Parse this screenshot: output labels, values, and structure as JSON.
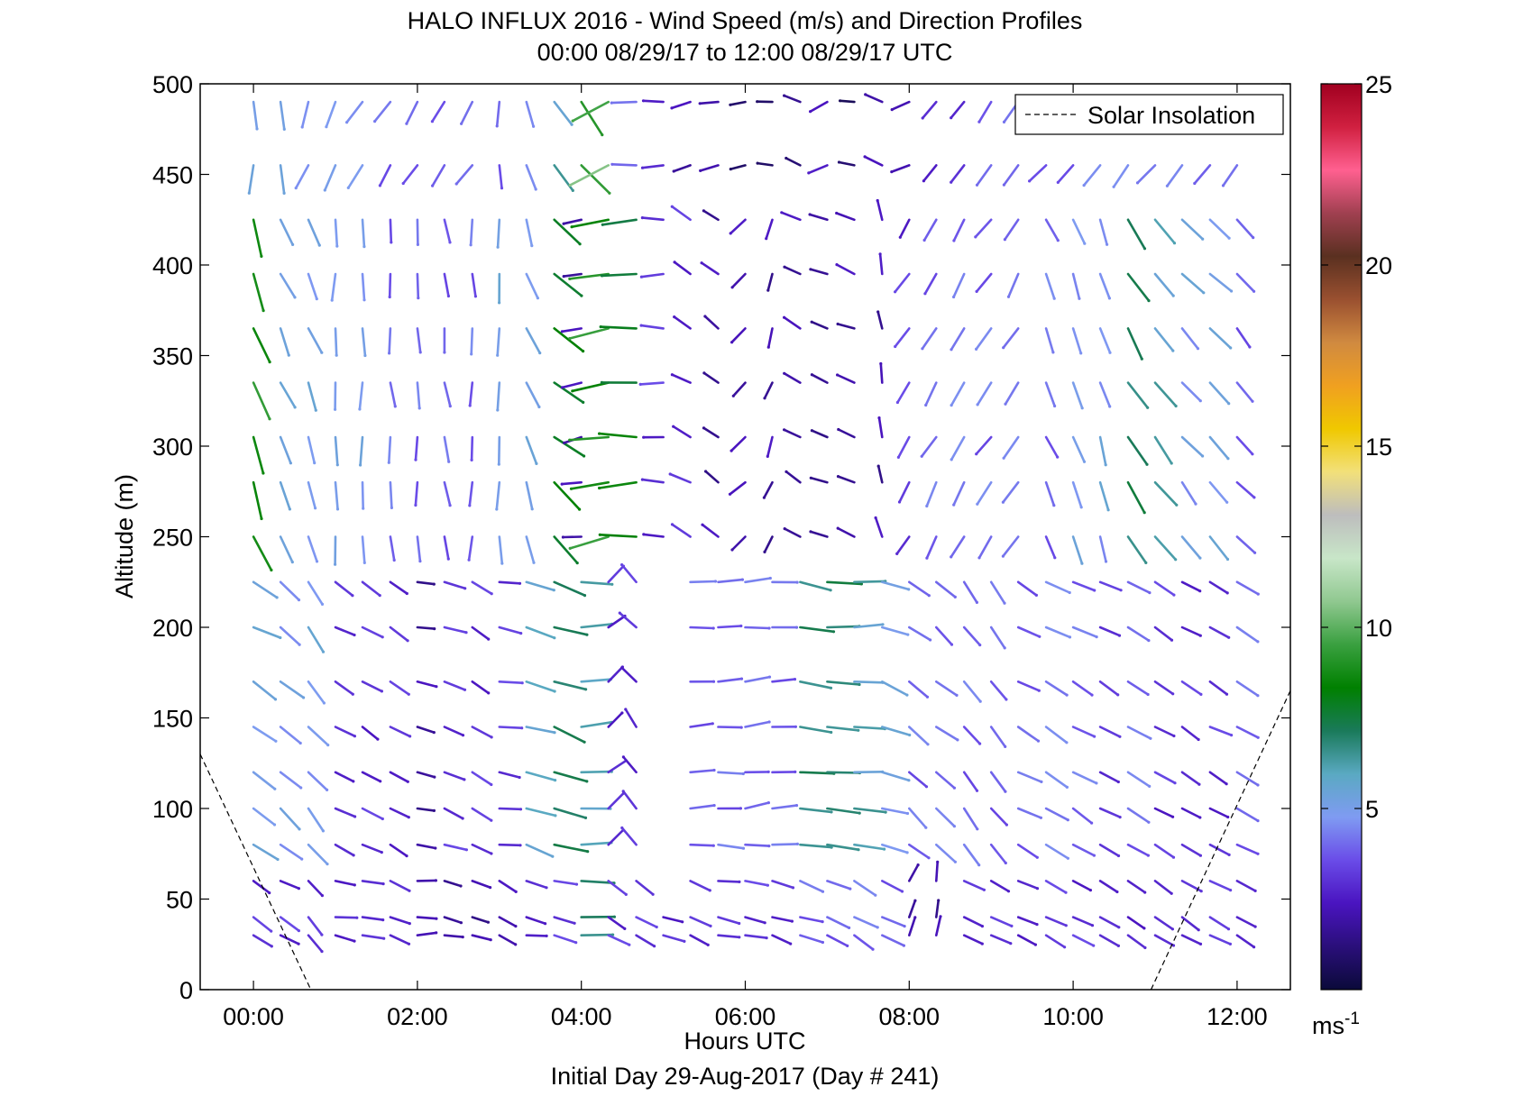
{
  "chart_data": {
    "type": "wind-barb-profile",
    "title": "HALO INFLUX 2016 - Wind Speed (m/s) and Direction Profiles",
    "subtitle": "00:00 08/29/17 to 12:00 08/29/17  UTC",
    "xlabel": "Hours UTC",
    "ylabel": "Altitude (m)",
    "footer": "Initial Day 29-Aug-2017 (Day # 241)",
    "xlim": [
      -0.65,
      12.65
    ],
    "ylim": [
      0,
      500
    ],
    "x_ticks": [
      "00:00",
      "02:00",
      "04:00",
      "06:00",
      "08:00",
      "10:00",
      "12:00"
    ],
    "x_tick_values": [
      0,
      2,
      4,
      6,
      8,
      10,
      12
    ],
    "y_ticks": [
      "0",
      "50",
      "100",
      "150",
      "200",
      "250",
      "300",
      "350",
      "400",
      "450",
      "500"
    ],
    "y_tick_values": [
      0,
      50,
      100,
      150,
      200,
      250,
      300,
      350,
      400,
      450,
      500
    ],
    "legend": {
      "label": "Solar Insolation",
      "style": "dashed",
      "position": "top-right"
    },
    "solar_insolation": [
      {
        "x": [
          -0.65,
          0.7
        ],
        "y": [
          130,
          0
        ]
      },
      {
        "x": [
          10.95,
          12.65
        ],
        "y": [
          0,
          165
        ]
      }
    ],
    "colorbar": {
      "min": 0,
      "max": 25,
      "ticks": [
        "5",
        "10",
        "15",
        "20",
        "25"
      ],
      "tick_values": [
        5,
        10,
        15,
        20,
        25
      ],
      "unit": "ms",
      "unit_exponent": "-1",
      "stops": [
        "#0b0a3a",
        "#2a0f7a",
        "#4a14c0",
        "#6a4ce8",
        "#7f9bf2",
        "#5aa9c2",
        "#1a7a5a",
        "#008000",
        "#3aa040",
        "#90c890",
        "#c8e6c8",
        "#bdbdbd",
        "#f2e07a",
        "#f0c800",
        "#f0a020",
        "#d08a40",
        "#9a5030",
        "#5a3020",
        "#a04050",
        "#ff6090",
        "#d02040",
        "#a00020"
      ]
    },
    "wind_vectors": {
      "times": [
        0.0,
        0.33,
        0.67,
        1.0,
        1.33,
        1.67,
        2.0,
        2.33,
        2.67,
        3.0,
        3.33,
        3.67,
        4.0,
        4.33,
        4.67,
        5.0,
        5.33,
        5.67,
        6.0,
        6.33,
        6.67,
        7.0,
        7.33,
        7.67,
        8.0,
        8.33,
        8.67,
        9.0,
        9.33,
        9.67,
        10.0,
        10.33,
        10.67,
        11.0,
        11.33,
        11.67,
        12.0
      ],
      "altitudes": [
        30,
        40,
        60,
        80,
        100,
        120,
        145,
        170,
        200,
        225,
        250,
        280,
        305,
        335,
        365,
        395,
        425,
        455,
        490
      ],
      "sample_rows": [
        {
          "altitude": 490,
          "speed_ms": [
            5,
            5,
            5,
            5,
            5,
            4,
            4,
            4,
            4,
            4,
            5,
            6,
            9,
            10,
            4,
            3,
            2,
            2,
            1,
            1,
            1,
            2,
            1,
            2,
            2,
            3,
            3,
            4,
            4,
            4,
            4,
            4,
            4,
            4,
            4,
            4,
            4
          ],
          "direction_deg": [
            0,
            355,
            20,
            25,
            30,
            30,
            35,
            30,
            35,
            0,
            340,
            320,
            320,
            60,
            95,
            90,
            70,
            80,
            80,
            100,
            120,
            60,
            100,
            120,
            70,
            40,
            40,
            40,
            40,
            40,
            40,
            40,
            40,
            40,
            40,
            40,
            40
          ]
        },
        {
          "altitude": 365,
          "speed_ms": [
            9,
            5,
            5,
            5,
            5,
            4,
            4,
            4,
            4,
            5,
            5,
            8,
            2,
            9,
            8,
            3,
            3,
            2,
            2,
            2,
            2,
            2,
            2,
            2,
            3,
            4,
            4,
            4,
            4,
            4,
            5,
            5,
            7,
            6,
            5,
            5,
            4
          ],
          "direction_deg": [
            340,
            335,
            340,
            0,
            0,
            355,
            0,
            355,
            0,
            0,
            340,
            310,
            80,
            80,
            90,
            90,
            120,
            130,
            50,
            20,
            120,
            110,
            110,
            170,
            35,
            30,
            30,
            35,
            30,
            335,
            340,
            345,
            330,
            325,
            320,
            315,
            320
          ]
        },
        {
          "altitude": 100,
          "speed_ms": [
            5,
            5,
            5,
            3,
            3,
            3,
            2,
            3,
            3,
            3,
            6,
            7,
            6,
            3,
            3,
            4,
            4,
            4,
            4,
            4,
            7,
            7,
            6,
            5,
            4,
            4,
            4,
            4,
            4,
            4,
            4,
            3,
            4,
            3,
            3,
            3,
            4
          ],
          "direction_deg": [
            300,
            310,
            320,
            300,
            300,
            300,
            280,
            290,
            300,
            280,
            290,
            290,
            270,
            230,
            140,
            300,
            270,
            270,
            265,
            270,
            280,
            275,
            270,
            290,
            310,
            310,
            320,
            320,
            300,
            300,
            300,
            300,
            300,
            300,
            300,
            300,
            300
          ]
        },
        {
          "altitude": 30,
          "speed_ms": [
            3,
            3,
            3,
            3,
            3,
            3,
            2,
            2,
            2,
            2,
            3,
            3,
            7,
            3,
            3,
            3,
            3,
            3,
            3,
            3,
            4,
            4,
            4,
            4,
            2,
            2,
            3,
            3,
            3,
            3,
            3,
            3,
            3,
            3,
            3,
            3,
            3
          ],
          "direction_deg": [
            300,
            300,
            320,
            280,
            280,
            290,
            270,
            280,
            290,
            300,
            280,
            280,
            270,
            300,
            300,
            290,
            290,
            280,
            280,
            290,
            290,
            290,
            300,
            300,
            200,
            190,
            300,
            300,
            300,
            300,
            300,
            300,
            300,
            300,
            300,
            300,
            300
          ]
        }
      ]
    }
  }
}
